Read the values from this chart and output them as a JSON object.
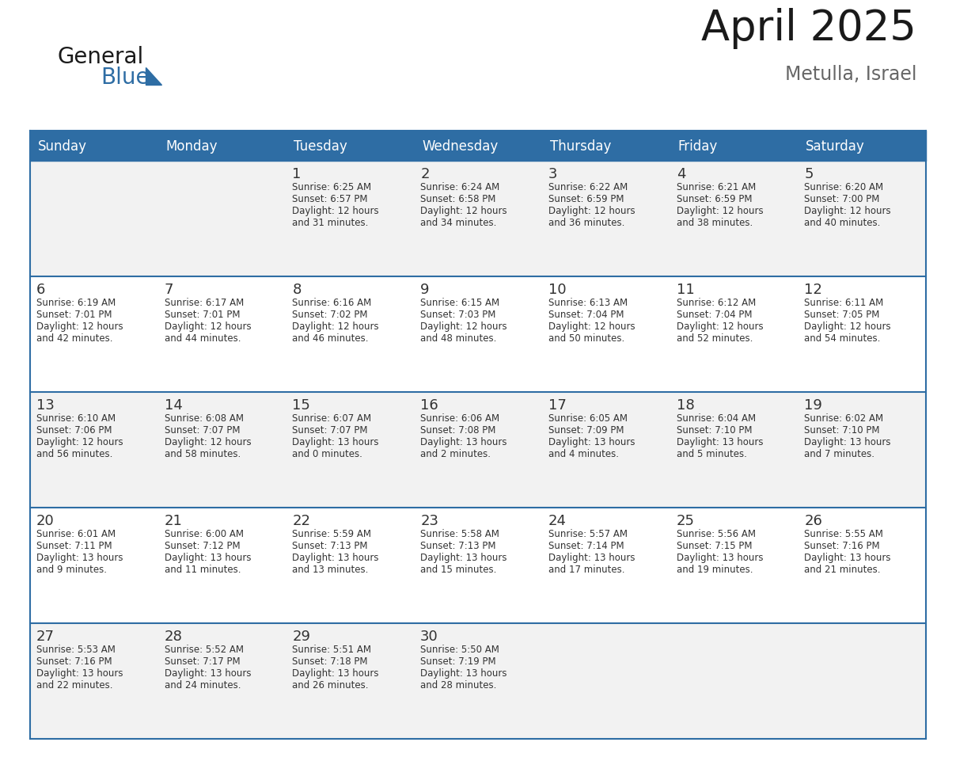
{
  "title": "April 2025",
  "subtitle": "Metulla, Israel",
  "header_color": "#2E6DA4",
  "header_text_color": "#FFFFFF",
  "days_of_week": [
    "Sunday",
    "Monday",
    "Tuesday",
    "Wednesday",
    "Thursday",
    "Friday",
    "Saturday"
  ],
  "row_bg_colors": [
    "#F2F2F2",
    "#FFFFFF"
  ],
  "divider_color": "#2E6DA4",
  "cell_text_color": "#333333",
  "calendar_data": [
    [
      {
        "day": "",
        "sunrise": "",
        "sunset": "",
        "daylight": ""
      },
      {
        "day": "",
        "sunrise": "",
        "sunset": "",
        "daylight": ""
      },
      {
        "day": "1",
        "sunrise": "6:25 AM",
        "sunset": "6:57 PM",
        "daylight": "12 hours\nand 31 minutes."
      },
      {
        "day": "2",
        "sunrise": "6:24 AM",
        "sunset": "6:58 PM",
        "daylight": "12 hours\nand 34 minutes."
      },
      {
        "day": "3",
        "sunrise": "6:22 AM",
        "sunset": "6:59 PM",
        "daylight": "12 hours\nand 36 minutes."
      },
      {
        "day": "4",
        "sunrise": "6:21 AM",
        "sunset": "6:59 PM",
        "daylight": "12 hours\nand 38 minutes."
      },
      {
        "day": "5",
        "sunrise": "6:20 AM",
        "sunset": "7:00 PM",
        "daylight": "12 hours\nand 40 minutes."
      }
    ],
    [
      {
        "day": "6",
        "sunrise": "6:19 AM",
        "sunset": "7:01 PM",
        "daylight": "12 hours\nand 42 minutes."
      },
      {
        "day": "7",
        "sunrise": "6:17 AM",
        "sunset": "7:01 PM",
        "daylight": "12 hours\nand 44 minutes."
      },
      {
        "day": "8",
        "sunrise": "6:16 AM",
        "sunset": "7:02 PM",
        "daylight": "12 hours\nand 46 minutes."
      },
      {
        "day": "9",
        "sunrise": "6:15 AM",
        "sunset": "7:03 PM",
        "daylight": "12 hours\nand 48 minutes."
      },
      {
        "day": "10",
        "sunrise": "6:13 AM",
        "sunset": "7:04 PM",
        "daylight": "12 hours\nand 50 minutes."
      },
      {
        "day": "11",
        "sunrise": "6:12 AM",
        "sunset": "7:04 PM",
        "daylight": "12 hours\nand 52 minutes."
      },
      {
        "day": "12",
        "sunrise": "6:11 AM",
        "sunset": "7:05 PM",
        "daylight": "12 hours\nand 54 minutes."
      }
    ],
    [
      {
        "day": "13",
        "sunrise": "6:10 AM",
        "sunset": "7:06 PM",
        "daylight": "12 hours\nand 56 minutes."
      },
      {
        "day": "14",
        "sunrise": "6:08 AM",
        "sunset": "7:07 PM",
        "daylight": "12 hours\nand 58 minutes."
      },
      {
        "day": "15",
        "sunrise": "6:07 AM",
        "sunset": "7:07 PM",
        "daylight": "13 hours\nand 0 minutes."
      },
      {
        "day": "16",
        "sunrise": "6:06 AM",
        "sunset": "7:08 PM",
        "daylight": "13 hours\nand 2 minutes."
      },
      {
        "day": "17",
        "sunrise": "6:05 AM",
        "sunset": "7:09 PM",
        "daylight": "13 hours\nand 4 minutes."
      },
      {
        "day": "18",
        "sunrise": "6:04 AM",
        "sunset": "7:10 PM",
        "daylight": "13 hours\nand 5 minutes."
      },
      {
        "day": "19",
        "sunrise": "6:02 AM",
        "sunset": "7:10 PM",
        "daylight": "13 hours\nand 7 minutes."
      }
    ],
    [
      {
        "day": "20",
        "sunrise": "6:01 AM",
        "sunset": "7:11 PM",
        "daylight": "13 hours\nand 9 minutes."
      },
      {
        "day": "21",
        "sunrise": "6:00 AM",
        "sunset": "7:12 PM",
        "daylight": "13 hours\nand 11 minutes."
      },
      {
        "day": "22",
        "sunrise": "5:59 AM",
        "sunset": "7:13 PM",
        "daylight": "13 hours\nand 13 minutes."
      },
      {
        "day": "23",
        "sunrise": "5:58 AM",
        "sunset": "7:13 PM",
        "daylight": "13 hours\nand 15 minutes."
      },
      {
        "day": "24",
        "sunrise": "5:57 AM",
        "sunset": "7:14 PM",
        "daylight": "13 hours\nand 17 minutes."
      },
      {
        "day": "25",
        "sunrise": "5:56 AM",
        "sunset": "7:15 PM",
        "daylight": "13 hours\nand 19 minutes."
      },
      {
        "day": "26",
        "sunrise": "5:55 AM",
        "sunset": "7:16 PM",
        "daylight": "13 hours\nand 21 minutes."
      }
    ],
    [
      {
        "day": "27",
        "sunrise": "5:53 AM",
        "sunset": "7:16 PM",
        "daylight": "13 hours\nand 22 minutes."
      },
      {
        "day": "28",
        "sunrise": "5:52 AM",
        "sunset": "7:17 PM",
        "daylight": "13 hours\nand 24 minutes."
      },
      {
        "day": "29",
        "sunrise": "5:51 AM",
        "sunset": "7:18 PM",
        "daylight": "13 hours\nand 26 minutes."
      },
      {
        "day": "30",
        "sunrise": "5:50 AM",
        "sunset": "7:19 PM",
        "daylight": "13 hours\nand 28 minutes."
      },
      {
        "day": "",
        "sunrise": "",
        "sunset": "",
        "daylight": ""
      },
      {
        "day": "",
        "sunrise": "",
        "sunset": "",
        "daylight": ""
      },
      {
        "day": "",
        "sunrise": "",
        "sunset": "",
        "daylight": ""
      }
    ]
  ],
  "logo_text_general": "General",
  "logo_text_blue": "Blue",
  "logo_triangle_color": "#2E6DA4"
}
